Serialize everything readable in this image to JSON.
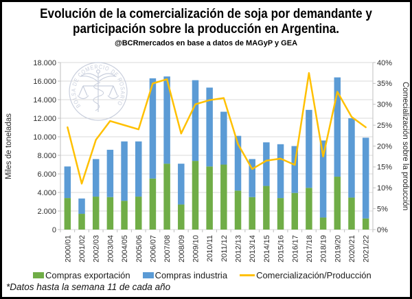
{
  "header": {
    "title_line1": "Evolución de la comercialización de soja por demandante y",
    "title_line2": "participación sobre la producción en Argentina.",
    "subtitle": "@BCRmercados en base a datos de MAGyP y GEA"
  },
  "footnote": "*Datos hasta la semana 11 de cada año",
  "watermark_text": "BOLSA DE COMERCIO DE ROSARIO",
  "chart_data": {
    "type": "bar",
    "stacked": true,
    "line_overlay": true,
    "grid": true,
    "legend_position": "bottom",
    "categories": [
      "2000/01",
      "2001/02",
      "2002/03",
      "2003/04",
      "2004/05",
      "2005/06",
      "2006/07",
      "2007/08",
      "2008/09",
      "2009/10",
      "2010/11",
      "2011/12",
      "2012/13",
      "2013/14",
      "2014/15",
      "2015/16",
      "2016/17",
      "2017/18",
      "2018/19",
      "2019/20",
      "2020/21",
      "2021/22"
    ],
    "series": [
      {
        "name": "Compras exportación",
        "type": "bar",
        "axis": "left",
        "color": "#70AD47",
        "values": [
          3400,
          1700,
          3550,
          3500,
          3100,
          3550,
          5500,
          7100,
          2700,
          7400,
          6800,
          7000,
          4200,
          3500,
          4700,
          3400,
          3950,
          4500,
          1300,
          5700,
          3450,
          1200
        ]
      },
      {
        "name": "Compras industria",
        "type": "bar",
        "axis": "left",
        "color": "#5B9BD5",
        "values": [
          3400,
          1650,
          4050,
          5100,
          6400,
          5950,
          10800,
          9400,
          4400,
          8700,
          8500,
          5700,
          5900,
          4100,
          4700,
          5800,
          5050,
          8400,
          8300,
          10700,
          8550,
          8700
        ]
      },
      {
        "name": "Comercialización/Producción",
        "type": "line",
        "axis": "right",
        "color": "#FFC000",
        "values": [
          24.5,
          11,
          21.5,
          26,
          25,
          24,
          35,
          36,
          23,
          30,
          31,
          31.5,
          20.5,
          14.5,
          16.5,
          17,
          15.5,
          37.5,
          17.5,
          33,
          27,
          24.5
        ]
      }
    ],
    "left_axis": {
      "title": "Miles de toneladas",
      "min": 0,
      "max": 18000,
      "step": 2000,
      "tick_labels": [
        "18.000",
        "16.000",
        "14.000",
        "12.000",
        "10.000",
        "8.000",
        "6.000",
        "4.000",
        "2.000",
        "0"
      ]
    },
    "right_axis": {
      "title": "Comecialización sobre la producción",
      "min": 0,
      "max": 40,
      "step": 5,
      "tick_labels": [
        "40%",
        "35%",
        "30%",
        "25%",
        "20%",
        "15%",
        "10%",
        "5%",
        "0%"
      ]
    }
  },
  "colors": {
    "grid": "#D9D9D9",
    "axis_line": "#BFBFBF",
    "tick_text": "#2B2B2B",
    "watermark": "#C8CEDC",
    "background": "#FFFFFF",
    "border": "#000000"
  }
}
